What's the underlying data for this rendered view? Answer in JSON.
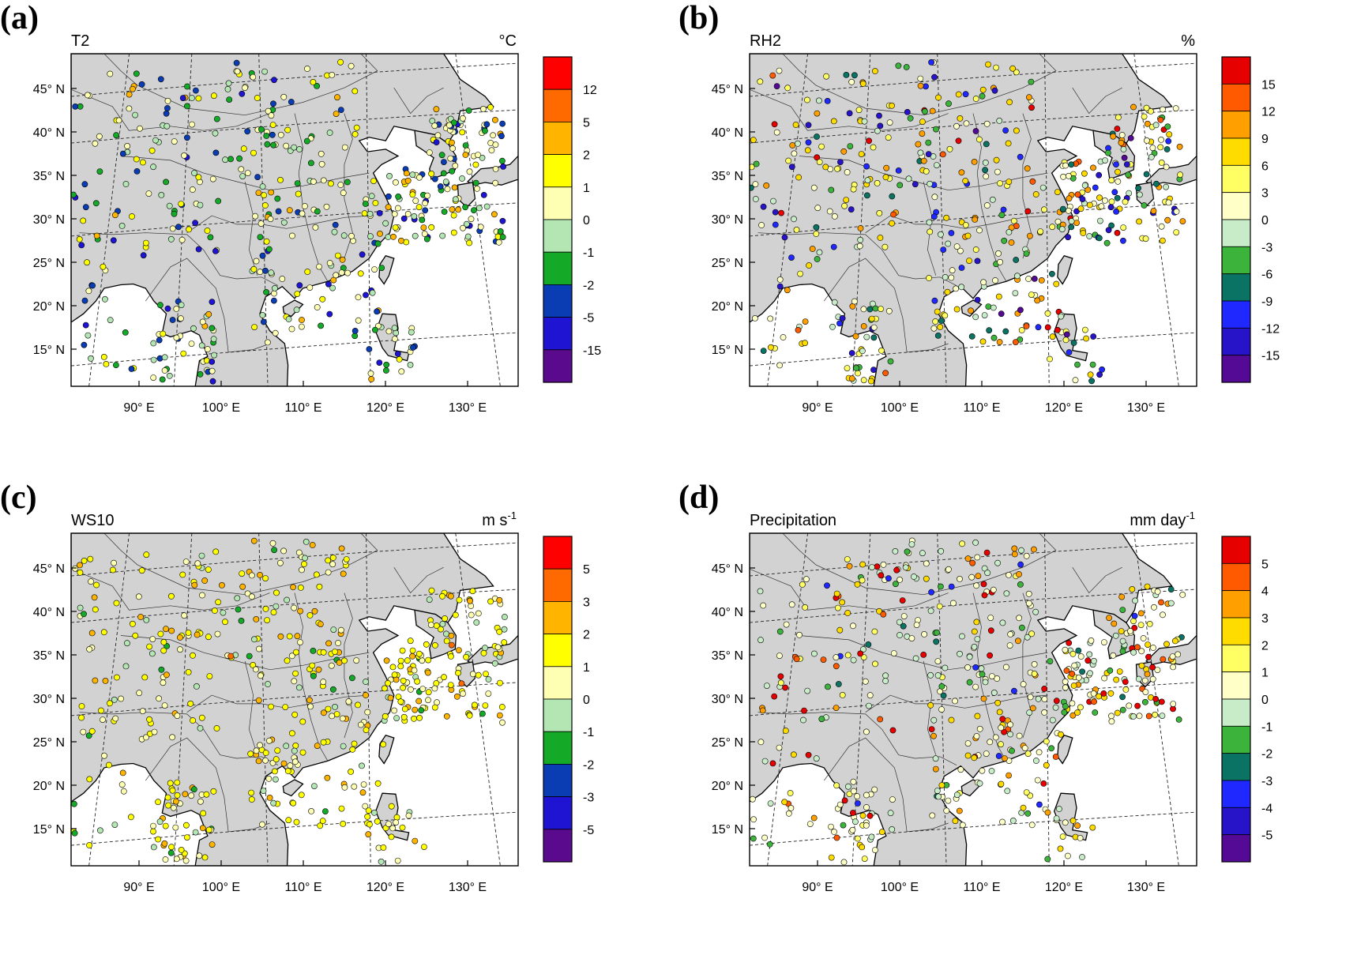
{
  "panels": [
    {
      "label": "(a)",
      "left_title": "T2",
      "unit": "°C",
      "lat_labels": [
        "45° N",
        "40° N",
        "35° N",
        "30° N",
        "25° N",
        "20° N",
        "15° N"
      ],
      "lon_labels": [
        "90° E",
        "100° E",
        "110° E",
        "120° E",
        "130° E"
      ],
      "colorbar_labels": [
        "12",
        "5",
        "2",
        "1",
        "0",
        "-1",
        "-2",
        "-5",
        "-15"
      ],
      "colors": [
        "#ff0000",
        "#ff6a00",
        "#ffb400",
        "#ffff00",
        "#ffffb4",
        "#b4e6b4",
        "#14aa28",
        "#0a3cb4",
        "#1e14d2",
        "#5a0a8c"
      ],
      "site_mix": [
        0.0,
        0.0,
        0.08,
        0.14,
        0.3,
        0.13,
        0.12,
        0.16,
        0.07,
        0.0
      ]
    },
    {
      "label": "(b)",
      "left_title": "RH2",
      "unit": "%",
      "lat_labels": [
        "45° N",
        "40° N",
        "35° N",
        "30° N",
        "25° N",
        "20° N",
        "15° N"
      ],
      "lon_labels": [
        "90° E",
        "100° E",
        "110° E",
        "120° E",
        "130° E"
      ],
      "colorbar_labels": [
        "15",
        "12",
        "9",
        "6",
        "3",
        "0",
        "-3",
        "-6",
        "-9",
        "-12",
        "-15"
      ],
      "colors": [
        "#e60000",
        "#ff5a00",
        "#ffa000",
        "#ffdc00",
        "#ffff64",
        "#ffffc8",
        "#c8ebc8",
        "#3cb43c",
        "#0a7364",
        "#1e28ff",
        "#2814c8",
        "#550a96"
      ],
      "site_mix": [
        0.04,
        0.03,
        0.1,
        0.14,
        0.13,
        0.14,
        0.12,
        0.08,
        0.07,
        0.08,
        0.05,
        0.02
      ]
    },
    {
      "label": "(c)",
      "left_title": "WS10",
      "unit": "m s",
      "unit_sup": "-1",
      "lat_labels": [
        "45° N",
        "40° N",
        "35° N",
        "30° N",
        "25° N",
        "20° N",
        "15° N"
      ],
      "lon_labels": [
        "90° E",
        "100° E",
        "110° E",
        "120° E",
        "130° E"
      ],
      "colorbar_labels": [
        "5",
        "3",
        "2",
        "1",
        "0",
        "-1",
        "-2",
        "-3",
        "-5"
      ],
      "colors": [
        "#ff0000",
        "#ff6a00",
        "#ffb400",
        "#ffff00",
        "#ffffb4",
        "#b4e6b4",
        "#14aa28",
        "#0a3cb4",
        "#1e14d2",
        "#5a0a8c"
      ],
      "site_mix": [
        0.0,
        0.01,
        0.15,
        0.42,
        0.25,
        0.12,
        0.05,
        0.0,
        0.0,
        0.0
      ]
    },
    {
      "label": "(d)",
      "left_title": "Precipitation",
      "unit": "mm day",
      "unit_sup": "-1",
      "lat_labels": [
        "45° N",
        "40° N",
        "35° N",
        "30° N",
        "25° N",
        "20° N",
        "15° N"
      ],
      "lon_labels": [
        "90° E",
        "100° E",
        "110° E",
        "120° E",
        "130° E"
      ],
      "colorbar_labels": [
        "5",
        "4",
        "3",
        "2",
        "1",
        "0",
        "-1",
        "-2",
        "-3",
        "-4",
        "-5"
      ],
      "colors": [
        "#e60000",
        "#ff5a00",
        "#ffa000",
        "#ffdc00",
        "#ffff64",
        "#ffffc8",
        "#c8ebc8",
        "#3cb43c",
        "#0a7364",
        "#1e28ff",
        "#2814c8",
        "#550a96"
      ],
      "site_mix": [
        0.08,
        0.04,
        0.08,
        0.1,
        0.08,
        0.32,
        0.18,
        0.08,
        0.02,
        0.02,
        0.0,
        0.0
      ]
    }
  ]
}
